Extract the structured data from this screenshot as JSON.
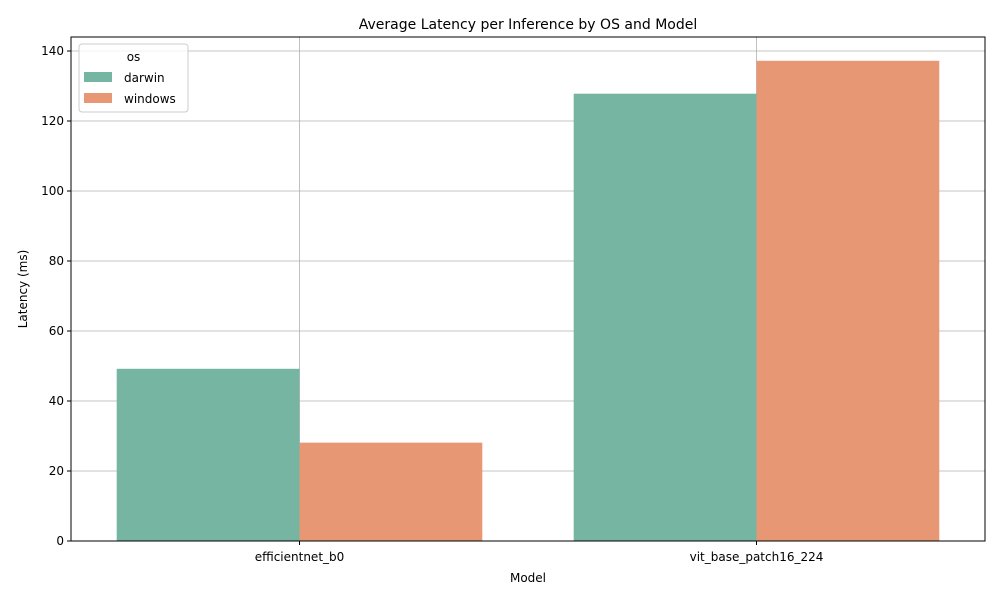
{
  "chart_data": {
    "type": "bar",
    "title": "Average Latency per Inference by OS and Model",
    "xlabel": "Model",
    "ylabel": "Latency (ms)",
    "categories": [
      "efficientnet_b0",
      "vit_base_patch16_224"
    ],
    "series": [
      {
        "name": "darwin",
        "color": "#75b5a2",
        "values": [
          49.2,
          127.8
        ]
      },
      {
        "name": "windows",
        "color": "#e89775",
        "values": [
          28.1,
          137.2
        ]
      }
    ],
    "ylim": [
      0,
      144
    ],
    "yticks": [
      0,
      20,
      40,
      60,
      80,
      100,
      120,
      140
    ],
    "grid": true,
    "legend": {
      "title": "os",
      "placement": "top-left"
    }
  }
}
